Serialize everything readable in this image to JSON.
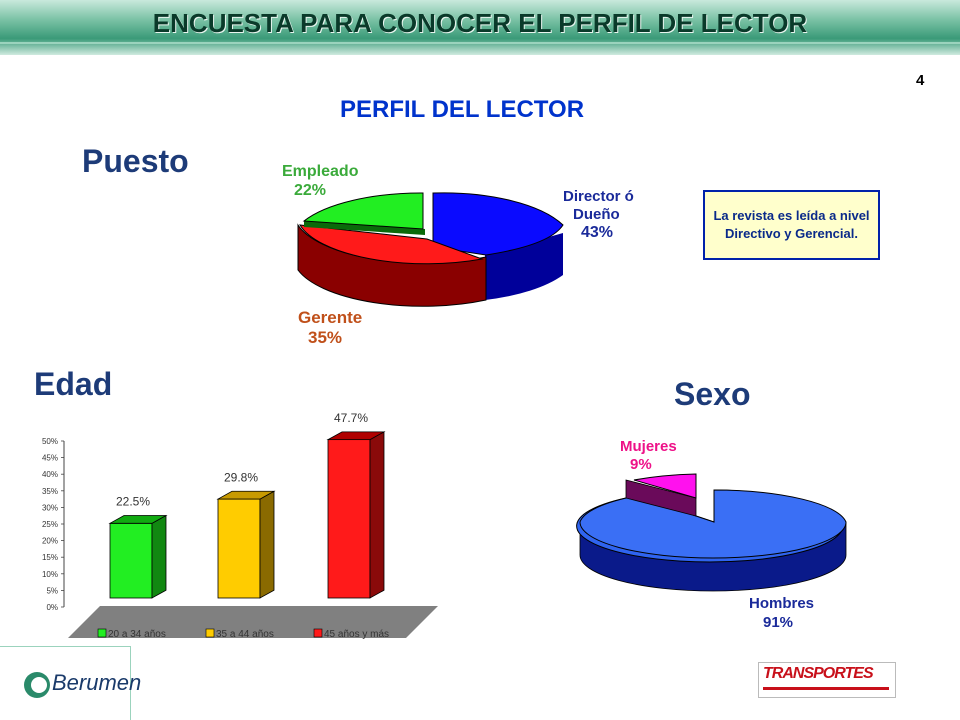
{
  "header": {
    "title": "ENCUESTA PARA CONOCER EL PERFIL DE LECTOR",
    "page_number": "4"
  },
  "subtitle": "PERFIL DEL LECTOR",
  "sections": {
    "puesto": "Puesto",
    "edad": "Edad",
    "sexo": "Sexo"
  },
  "callout": "La revista es leída a nivel Directivo y Gerencial.",
  "puesto_labels": {
    "director_a": "Director ó",
    "director_b": "Dueño",
    "director_pct": "43%",
    "gerente": "Gerente",
    "gerente_pct": "35%",
    "empleado": "Empleado",
    "empleado_pct": "22%"
  },
  "sexo_labels": {
    "mujeres": "Mujeres",
    "mujeres_pct": "9%",
    "hombres": "Hombres",
    "hombres_pct": "91%"
  },
  "edad_axis_ticks": [
    "0%",
    "5%",
    "10%",
    "15%",
    "20%",
    "25%",
    "30%",
    "35%",
    "40%",
    "45%",
    "50%"
  ],
  "edad_data_labels": [
    "22.5%",
    "29.8%",
    "47.7%"
  ],
  "edad_legend": [
    "20 a 34 años",
    "35 a 44 años",
    "45 años y más"
  ],
  "logos": {
    "berumen": "Berumen",
    "transportes": "TRANSPORTES"
  },
  "colors": {
    "blue": "#0010ff",
    "red": "#ff1a1a",
    "green": "#22ee22",
    "yellow": "#ffcc00",
    "magenta": "#ff11ee",
    "hombres_blue": "#2f64f0"
  },
  "chart_data": [
    {
      "type": "pie",
      "title": "Puesto",
      "categories": [
        "Director ó Dueño",
        "Gerente",
        "Empleado"
      ],
      "values": [
        43,
        35,
        22
      ]
    },
    {
      "type": "bar",
      "title": "Edad",
      "categories": [
        "20 a 34 años",
        "35 a 44 años",
        "45 años y más"
      ],
      "values": [
        22.5,
        29.8,
        47.7
      ],
      "ylim": [
        0,
        50
      ],
      "ylabel": ""
    },
    {
      "type": "pie",
      "title": "Sexo",
      "categories": [
        "Hombres",
        "Mujeres"
      ],
      "values": [
        91,
        9
      ]
    }
  ]
}
